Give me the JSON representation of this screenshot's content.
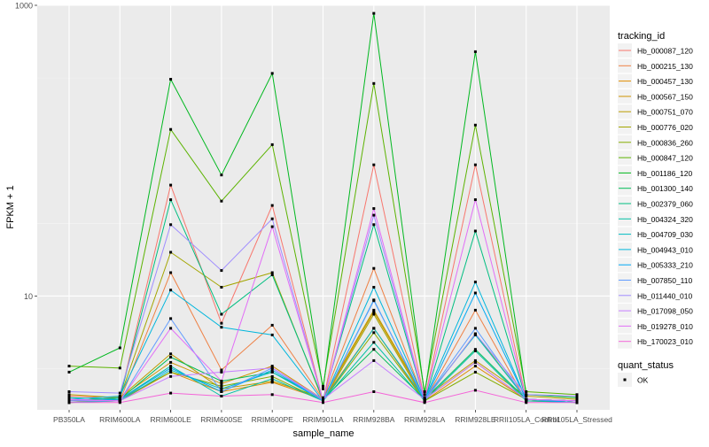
{
  "chart_data": {
    "type": "line",
    "xlabel": "sample_name",
    "ylabel": "FPKM + 1",
    "y_scale": "log10",
    "ylim": [
      1.65,
      1000
    ],
    "y_ticks": [
      {
        "value": 10,
        "label": "10"
      },
      {
        "value": 1000,
        "label": "1000"
      }
    ],
    "categories": [
      "PB350LA",
      "RRIM600LA",
      "RRIM600LE",
      "RRIM600SE",
      "RRIM600PE",
      "RRIM901LA",
      "RRIM928BA",
      "RRIM928LA",
      "RRIM928LE",
      "RRII105LA_Control",
      "RRII105LA_Stressed"
    ],
    "legend": {
      "title": "tracking_id",
      "position": "right",
      "status_title": "quant_status",
      "status_items": [
        "OK"
      ]
    },
    "series": [
      {
        "name": "Hb_000087_120",
        "color": "#F8766D",
        "values": [
          2.05,
          2.0,
          58.0,
          6.5,
          42.0,
          1.9,
          80.0,
          1.95,
          80.0,
          1.95,
          1.9
        ]
      },
      {
        "name": "Hb_000215_130",
        "color": "#EE8044",
        "values": [
          1.95,
          1.9,
          14.5,
          3.1,
          6.3,
          1.95,
          15.5,
          1.9,
          8.0,
          1.9,
          1.85
        ]
      },
      {
        "name": "Hb_000457_130",
        "color": "#E08B00",
        "values": [
          1.85,
          1.9,
          3.0,
          2.2,
          2.55,
          1.95,
          6.0,
          1.9,
          3.3,
          1.95,
          1.9
        ]
      },
      {
        "name": "Hb_000567_150",
        "color": "#CF9400",
        "values": [
          1.9,
          2.0,
          3.5,
          2.5,
          3.3,
          1.95,
          7.8,
          1.95,
          3.5,
          1.95,
          1.85
        ]
      },
      {
        "name": "Hb_000751_070",
        "color": "#BB9D00",
        "values": [
          2.1,
          2.0,
          4.0,
          2.3,
          2.6,
          2.0,
          8.0,
          2.0,
          3.6,
          2.05,
          1.95
        ]
      },
      {
        "name": "Hb_000776_020",
        "color": "#A3A500",
        "values": [
          1.9,
          2.0,
          20.0,
          11.5,
          14.5,
          1.9,
          7.5,
          1.9,
          5.5,
          1.95,
          1.9
        ]
      },
      {
        "name": "Hb_000836_260",
        "color": "#85AD00",
        "values": [
          1.85,
          1.95,
          3.0,
          2.4,
          2.8,
          1.9,
          5.6,
          1.9,
          3.0,
          1.95,
          1.85
        ]
      },
      {
        "name": "Hb_000847_120",
        "color": "#5BB300",
        "values": [
          3.3,
          3.2,
          140.0,
          45.0,
          110.0,
          2.4,
          290.0,
          2.2,
          150.0,
          2.2,
          2.1
        ]
      },
      {
        "name": "Hb_001186_120",
        "color": "#00B81F",
        "values": [
          3.0,
          4.4,
          310.0,
          68.0,
          340.0,
          2.3,
          880.0,
          2.1,
          480.0,
          2.1,
          2.0
        ]
      },
      {
        "name": "Hb_001300_140",
        "color": "#00BC57",
        "values": [
          1.9,
          1.95,
          3.8,
          2.6,
          3.0,
          1.95,
          4.3,
          1.95,
          4.3,
          1.95,
          1.9
        ]
      },
      {
        "name": "Hb_002379_060",
        "color": "#00BE80",
        "values": [
          1.9,
          2.0,
          46.0,
          7.5,
          14.0,
          1.95,
          31.0,
          1.9,
          28.0,
          1.95,
          1.85
        ]
      },
      {
        "name": "Hb_004324_320",
        "color": "#00BFA3",
        "values": [
          2.0,
          1.95,
          3.3,
          2.05,
          2.7,
          1.9,
          4.8,
          1.9,
          4.2,
          1.9,
          1.85
        ]
      },
      {
        "name": "Hb_004709_030",
        "color": "#00BDC2",
        "values": [
          1.85,
          1.9,
          3.1,
          2.3,
          3.0,
          1.9,
          6.0,
          1.95,
          5.4,
          1.95,
          1.9
        ]
      },
      {
        "name": "Hb_004943_010",
        "color": "#00B6DC",
        "values": [
          1.95,
          2.05,
          11.0,
          6.1,
          5.4,
          1.9,
          11.5,
          1.95,
          12.5,
          1.95,
          1.9
        ]
      },
      {
        "name": "Hb_005333_210",
        "color": "#00A9F4",
        "values": [
          1.9,
          1.95,
          3.2,
          2.2,
          3.1,
          1.9,
          9.4,
          1.9,
          10.5,
          1.95,
          1.85
        ]
      },
      {
        "name": "Hb_007850_110",
        "color": "#619CFF",
        "values": [
          1.95,
          1.9,
          7.0,
          2.2,
          3.2,
          1.9,
          9.3,
          1.95,
          6.0,
          1.95,
          1.9
        ]
      },
      {
        "name": "Hb_011440_010",
        "color": "#9F8CFF",
        "values": [
          2.2,
          2.15,
          31.0,
          15.0,
          34.0,
          1.9,
          36.0,
          1.9,
          5.5,
          2.1,
          2.05
        ]
      },
      {
        "name": "Hb_017098_050",
        "color": "#C67EFF",
        "values": [
          1.9,
          1.9,
          2.8,
          3.0,
          3.2,
          1.95,
          3.6,
          1.95,
          3.5,
          1.95,
          1.9
        ]
      },
      {
        "name": "Hb_019278_010",
        "color": "#E26EF7",
        "values": [
          1.95,
          1.9,
          6.0,
          2.6,
          30.0,
          1.9,
          40.0,
          1.95,
          46.0,
          1.95,
          1.9
        ]
      },
      {
        "name": "Hb_170023_010",
        "color": "#F465D8",
        "values": [
          1.85,
          1.85,
          2.15,
          2.05,
          2.1,
          1.85,
          2.2,
          1.85,
          2.25,
          1.85,
          1.85
        ]
      }
    ]
  }
}
